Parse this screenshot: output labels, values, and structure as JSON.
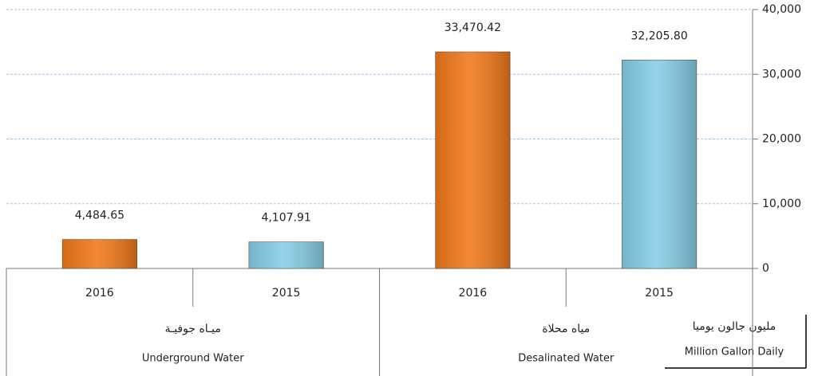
{
  "chart_data": {
    "type": "bar",
    "categories": [
      "Underground Water",
      "Desalinated Water"
    ],
    "categories_ar": [
      "ميـاه جوفيـة",
      "مياه محلاة"
    ],
    "series": [
      {
        "name": "2016",
        "color": "#f07818",
        "values": [
          4484.65,
          33470.42
        ],
        "value_labels": [
          "4,484.65",
          "33,470.42"
        ]
      },
      {
        "name": "2015",
        "color": "#86cde6",
        "values": [
          4107.91,
          32205.8
        ],
        "value_labels": [
          "4,107.91",
          "32,205.80"
        ]
      }
    ],
    "ylim": [
      0,
      40000
    ],
    "yticks": [
      0,
      {
        "value": 10000,
        "label": "10,000"
      },
      {
        "value": 20000,
        "label": "20,000"
      },
      {
        "value": 30000,
        "label": "30,000"
      },
      {
        "value": 40000,
        "label": "40,000"
      }
    ],
    "grid": true,
    "y_axis_label": {
      "ar": "مليون جالون يوميا",
      "en": "Million Gallon Daily"
    }
  }
}
